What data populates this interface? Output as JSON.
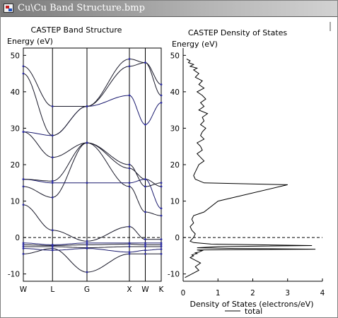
{
  "window": {
    "title": "Cu\\Cu Band Structure.bmp",
    "icon": "bitmap-file-icon"
  },
  "chart_data": [
    {
      "type": "line",
      "title": "CASTEP Band Structure",
      "ylabel": "Energy (eV)",
      "xlabel": "",
      "ylim": [
        -12,
        52
      ],
      "grid": false,
      "kpoints": [
        {
          "label": "W",
          "pos": 0.0
        },
        {
          "label": "L",
          "pos": 0.2115
        },
        {
          "label": "G",
          "pos": 0.4615
        },
        {
          "label": "X",
          "pos": 0.7692
        },
        {
          "label": "W",
          "pos": 0.8846
        },
        {
          "label": "K",
          "pos": 1.0
        }
      ],
      "y_ticks": [
        -10,
        0,
        10,
        20,
        30,
        40,
        50
      ],
      "fermi_level": 0,
      "series": [
        {
          "x": [
            0,
            0.2115,
            0.4615,
            0.7692,
            0.8846,
            1.0
          ],
          "y": [
            -4.5,
            -3,
            -9.5,
            -4.5,
            -4.5,
            -4.5
          ]
        },
        {
          "x": [
            0,
            0.2115,
            0.4615,
            0.7692,
            0.8846,
            1.0
          ],
          "y": [
            -3,
            -3.5,
            -3,
            -4,
            -3.5,
            -3.2
          ]
        },
        {
          "x": [
            0,
            0.2115,
            0.4615,
            0.7692,
            0.8846,
            1.0
          ],
          "y": [
            -2.5,
            -2.5,
            -2.8,
            -2.5,
            -2.5,
            -2.5
          ]
        },
        {
          "x": [
            0,
            0.2115,
            0.4615,
            0.7692,
            0.8846,
            1.0
          ],
          "y": [
            -2,
            -2.2,
            -2,
            -1.8,
            -2,
            -2
          ]
        },
        {
          "x": [
            0,
            0.2115,
            0.4615,
            0.7692,
            0.8846,
            1.0
          ],
          "y": [
            -1.5,
            -2,
            -1.5,
            -1.5,
            -1.5,
            -1.5
          ]
        },
        {
          "x": [
            0,
            0.2115,
            0.4615,
            0.7692,
            0.8846,
            1.0
          ],
          "y": [
            9,
            2,
            -1,
            3,
            -0.5,
            -0.5
          ]
        },
        {
          "x": [
            0,
            0.2115,
            0.4615,
            0.7692,
            0.8846,
            1.0
          ],
          "y": [
            14,
            11,
            26,
            14,
            7,
            6
          ]
        },
        {
          "x": [
            0,
            0.2115,
            0.4615,
            0.7692,
            0.8846,
            1.0
          ],
          "y": [
            16,
            15,
            15,
            15,
            16,
            8
          ]
        },
        {
          "x": [
            0,
            0.2115,
            0.4615,
            0.7692,
            0.8846,
            1.0
          ],
          "y": [
            16,
            15.5,
            26,
            19,
            16,
            14
          ]
        },
        {
          "x": [
            0,
            0.2115,
            0.4615,
            0.7692,
            0.8846,
            1.0
          ],
          "y": [
            29,
            22,
            26,
            20,
            14,
            15
          ]
        },
        {
          "x": [
            0,
            0.2115,
            0.4615,
            0.7692,
            0.8846,
            1.0
          ],
          "y": [
            29,
            28,
            36,
            39,
            31,
            37
          ]
        },
        {
          "x": [
            0,
            0.2115,
            0.4615,
            0.7692,
            0.8846,
            1.0
          ],
          "y": [
            45,
            28,
            36,
            47,
            48,
            42
          ]
        },
        {
          "x": [
            0,
            0.2115,
            0.4615,
            0.7692,
            0.8846,
            1.0
          ],
          "y": [
            47,
            36,
            36,
            49,
            48,
            39
          ]
        }
      ]
    },
    {
      "type": "line",
      "title": "CASTEP Density of States",
      "ylabel": "Energy (eV)",
      "xlabel": "Density of States (electrons/eV)",
      "xlim": [
        0,
        4
      ],
      "ylim": [
        -12,
        52
      ],
      "x_ticks": [
        0,
        1,
        2,
        3,
        4
      ],
      "y_ticks": [
        -10,
        0,
        10,
        20,
        30,
        40,
        50
      ],
      "grid": false,
      "fermi_level": 0,
      "legend": {
        "position": "bottom",
        "entries": [
          "total"
        ]
      },
      "series": [
        {
          "name": "total",
          "x": [
            0.05,
            0.25,
            0.45,
            0.35,
            0.5,
            0.4,
            0.3,
            0.2,
            0.3,
            0.25,
            0.3,
            0.4,
            0.35,
            0.45,
            0.5,
            0.55,
            0.4,
            3.8,
            1.5,
            0.4,
            1.0,
            3.7,
            0.8,
            0.3,
            0.2,
            0.3,
            0.35,
            0.25,
            0.2,
            0.3,
            0.25,
            0.3,
            0.6,
            1.0,
            3.0,
            0.6,
            0.35,
            0.3,
            0.35,
            0.4,
            0.45,
            0.6,
            0.5,
            0.4,
            0.55,
            0.5,
            0.4,
            0.6,
            0.5,
            0.55,
            0.65,
            0.5,
            0.6,
            0.55,
            0.7,
            0.45,
            0.6,
            0.5,
            0.65,
            0.55,
            0.4,
            0.6,
            0.45,
            0.55,
            0.35,
            0.45,
            0.3,
            0.4,
            0.2,
            0.3,
            0.15,
            0.2,
            0.1
          ],
          "y": [
            -11,
            -10,
            -9,
            -8,
            -7,
            -6.5,
            -6,
            -5.5,
            -5,
            -4.8,
            -4.6,
            -4.4,
            -4.2,
            -4,
            -3.8,
            -3.6,
            -3.4,
            -3.2,
            -3,
            -2.8,
            -2.5,
            -2.2,
            -1.8,
            -1.4,
            -1,
            0,
            1,
            2,
            3,
            4,
            5,
            6,
            7,
            10,
            14.5,
            15,
            16,
            17,
            18,
            19,
            20,
            21,
            22,
            23,
            24,
            25,
            26,
            27,
            28,
            29,
            30,
            31,
            32,
            33,
            34,
            35,
            36,
            37,
            38,
            39,
            40,
            41,
            42,
            43,
            44,
            45,
            46,
            46.5,
            47,
            47.5,
            48,
            48.5,
            49
          ]
        }
      ]
    }
  ]
}
